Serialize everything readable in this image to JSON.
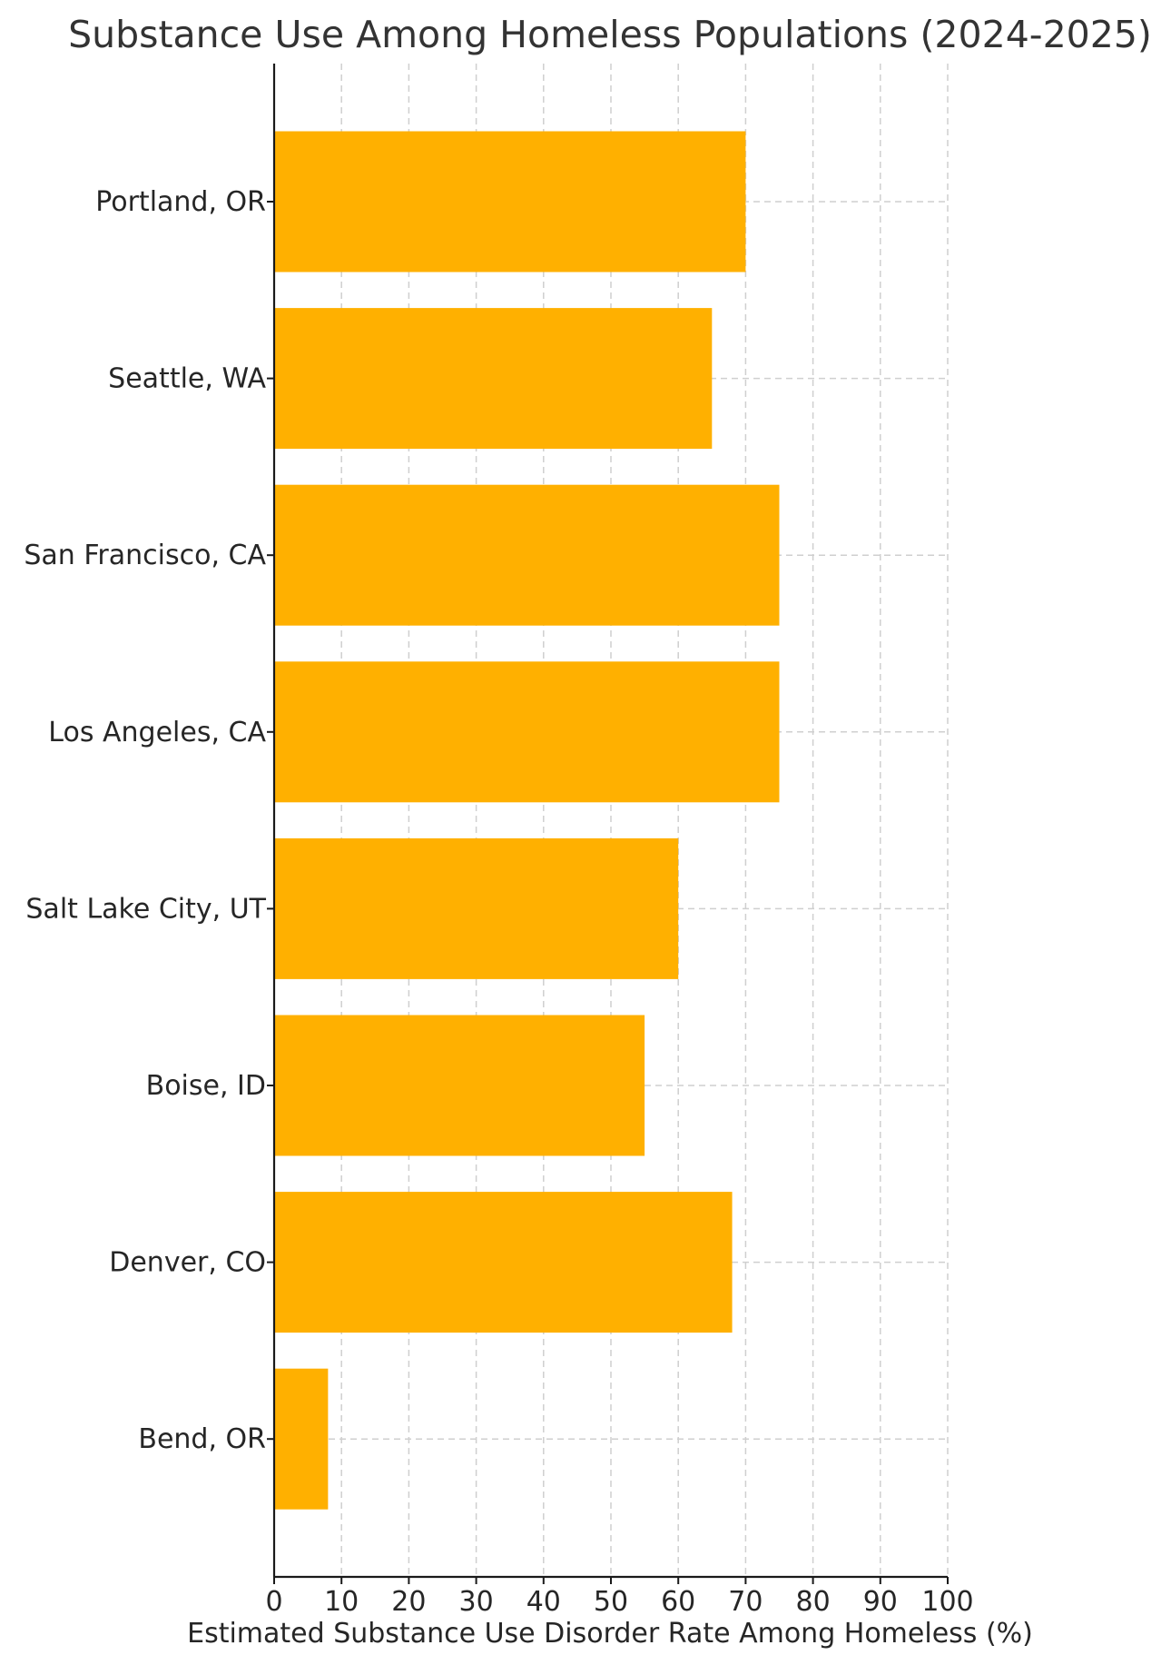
{
  "chart_data": {
    "type": "bar",
    "orientation": "horizontal",
    "title": "Substance Use Among Homeless Populations (2024-2025)",
    "xlabel": "Estimated Substance Use Disorder Rate Among Homeless (%)",
    "ylabel": "",
    "categories": [
      "Portland, OR",
      "Seattle, WA",
      "San Francisco, CA",
      "Los Angeles, CA",
      "Salt Lake City, UT",
      "Boise, ID",
      "Denver, CO",
      "Bend, OR"
    ],
    "values": [
      70,
      65,
      75,
      75,
      60,
      55,
      68,
      8
    ],
    "xlim": [
      0,
      100
    ],
    "xticks": [
      0,
      10,
      20,
      30,
      40,
      50,
      60,
      70,
      80,
      90,
      100
    ],
    "grid": true,
    "bar_color": "#FFB000"
  }
}
